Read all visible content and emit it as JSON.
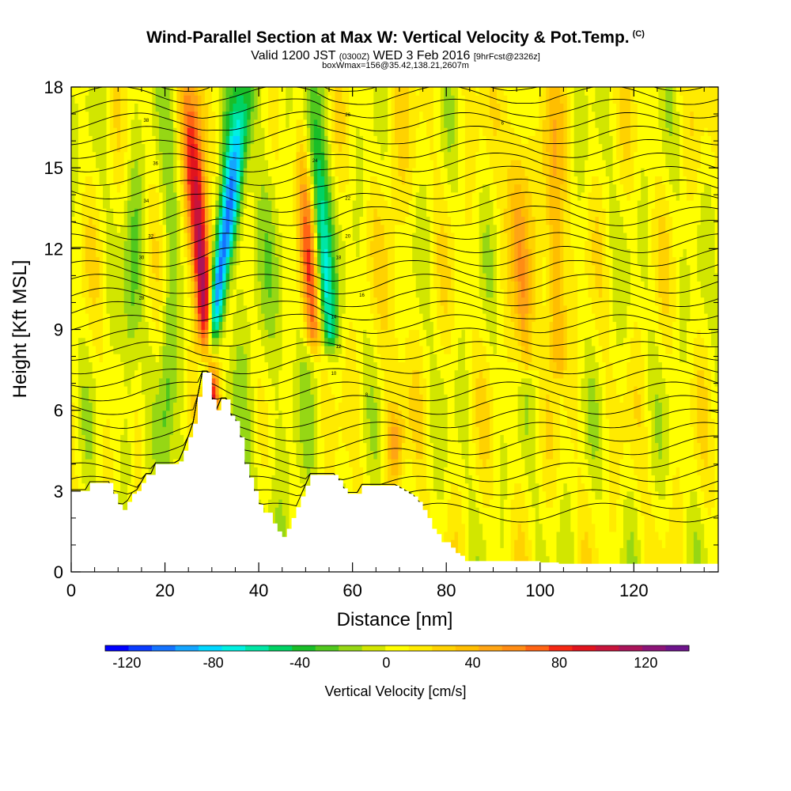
{
  "header": {
    "title": "Wind-Parallel Section at Max W: Vertical Velocity & Pot.Temp.",
    "title_mark": "(C)",
    "valid_prefix": "Valid 1200 JST",
    "valid_utc": "(0300Z)",
    "valid_date": "WED 3 Feb 2016",
    "forecast": "[9hrFcst@2326z]",
    "box_info": "boxWmax=156@35.42,138.21,2607m"
  },
  "chart_data": {
    "type": "heatmap",
    "xlabel": "Distance [nm]",
    "ylabel": "Height [Kft MSL]",
    "xlim": [
      0,
      138
    ],
    "ylim": [
      0,
      18
    ],
    "x_ticks": [
      "0",
      "20",
      "40",
      "60",
      "80",
      "100",
      "120"
    ],
    "y_ticks": [
      "0",
      "3",
      "6",
      "9",
      "12",
      "15",
      "18"
    ],
    "colorbar": {
      "label": "Vertical Velocity [cm/s]",
      "ticks": [
        "-120",
        "-80",
        "-40",
        "0",
        "40",
        "80",
        "120"
      ],
      "range": [
        -130,
        140
      ],
      "colors": [
        "#0000ff",
        "#0a3cff",
        "#1473ff",
        "#14a5ff",
        "#00d7ff",
        "#00f0e1",
        "#00e6a5",
        "#00d264",
        "#19be28",
        "#50c81e",
        "#96d714",
        "#d2e600",
        "#ffff00",
        "#ffeb00",
        "#ffd200",
        "#ffbe00",
        "#ffa514",
        "#ff8c14",
        "#ff6414",
        "#f52814",
        "#e1141e",
        "#c8143c",
        "#aa145a",
        "#8c1478",
        "#6e148c"
      ]
    },
    "velocity_features": [
      {
        "x": 29.0,
        "z_bottom": 7.5,
        "z_top": 18,
        "lean_nm": 8,
        "peak_cm_s": -120
      },
      {
        "x": 30.0,
        "z_bottom": 6.5,
        "z_top": 18,
        "lean_nm": -5,
        "peak_cm_s": 140
      },
      {
        "x": 55.0,
        "z_bottom": 9.0,
        "z_top": 18,
        "lean_nm": -4,
        "peak_cm_s": -70
      },
      {
        "x": 51.5,
        "z_bottom": 9.0,
        "z_top": 18,
        "lean_nm": -3,
        "peak_cm_s": 65
      },
      {
        "x": 97.0,
        "z_bottom": 8.0,
        "z_top": 18,
        "lean_nm": -3,
        "peak_cm_s": 45
      },
      {
        "x": 104.0,
        "z_bottom": 8.0,
        "z_top": 18,
        "lean_nm": -2,
        "peak_cm_s": 50
      },
      {
        "x": 12.0,
        "z_bottom": 4.0,
        "z_top": 18,
        "lean_nm": 2,
        "peak_cm_s": -25
      },
      {
        "x": 20.0,
        "z_bottom": 4.0,
        "z_top": 18,
        "lean_nm": 2,
        "peak_cm_s": -25
      },
      {
        "x": 69.0,
        "z_bottom": 4.0,
        "z_top": 6.5,
        "lean_nm": 0,
        "peak_cm_s": 40
      }
    ],
    "contour_labels": [
      "6",
      "8",
      "10",
      "12",
      "14",
      "16",
      "18",
      "20",
      "22",
      "24",
      "26",
      "28",
      "30",
      "32",
      "34",
      "36",
      "38"
    ],
    "terrain_profile_kft": {
      "x": [
        0,
        4,
        8,
        9,
        10,
        11,
        12,
        13,
        14,
        15,
        16,
        17,
        18,
        19,
        20,
        21,
        22,
        23,
        24,
        25,
        26,
        27,
        28,
        29,
        30,
        31,
        32,
        33,
        34,
        35,
        36,
        37,
        38,
        39,
        40,
        41,
        42,
        43,
        44,
        45,
        46,
        47,
        48,
        49,
        50,
        51,
        52,
        53,
        54,
        55,
        56,
        57,
        58,
        59,
        60,
        61,
        62,
        63,
        64,
        65,
        66,
        67,
        68,
        69,
        70,
        71,
        72,
        73,
        74,
        75,
        76,
        77,
        78,
        79,
        80,
        81,
        82,
        83,
        84,
        85,
        86,
        88,
        90,
        92,
        94,
        96,
        98,
        100,
        104,
        108,
        112,
        116,
        120,
        124,
        128,
        132,
        134,
        136,
        138
      ],
      "z": [
        3.0,
        3.3,
        3.3,
        2.9,
        2.5,
        2.3,
        2.6,
        2.9,
        3.0,
        3.3,
        3.6,
        3.6,
        4.0,
        4.0,
        4.0,
        4.0,
        4.0,
        4.1,
        4.5,
        5.0,
        5.5,
        6.5,
        7.4,
        7.4,
        6.4,
        6.0,
        6.4,
        6.4,
        5.8,
        5.6,
        5.0,
        4.0,
        3.5,
        3.0,
        2.5,
        2.2,
        2.2,
        1.8,
        1.5,
        1.3,
        1.6,
        2.0,
        2.4,
        2.8,
        3.2,
        3.6,
        3.6,
        3.6,
        3.6,
        3.6,
        3.6,
        3.4,
        3.1,
        2.9,
        2.9,
        2.9,
        3.2,
        3.2,
        3.2,
        3.2,
        3.2,
        3.2,
        3.2,
        3.2,
        3.1,
        3.0,
        2.9,
        2.8,
        2.6,
        2.3,
        2.0,
        1.6,
        1.4,
        1.1,
        1.1,
        0.9,
        0.7,
        0.6,
        0.4,
        0.4,
        0.4,
        0.4,
        0.4,
        0.4,
        0.4,
        0.4,
        0.4,
        0.35,
        0.3,
        0.3,
        0.3,
        0.3,
        0.3,
        0.3,
        0.3,
        0.3,
        0.3,
        0.3,
        0.3
      ]
    }
  }
}
